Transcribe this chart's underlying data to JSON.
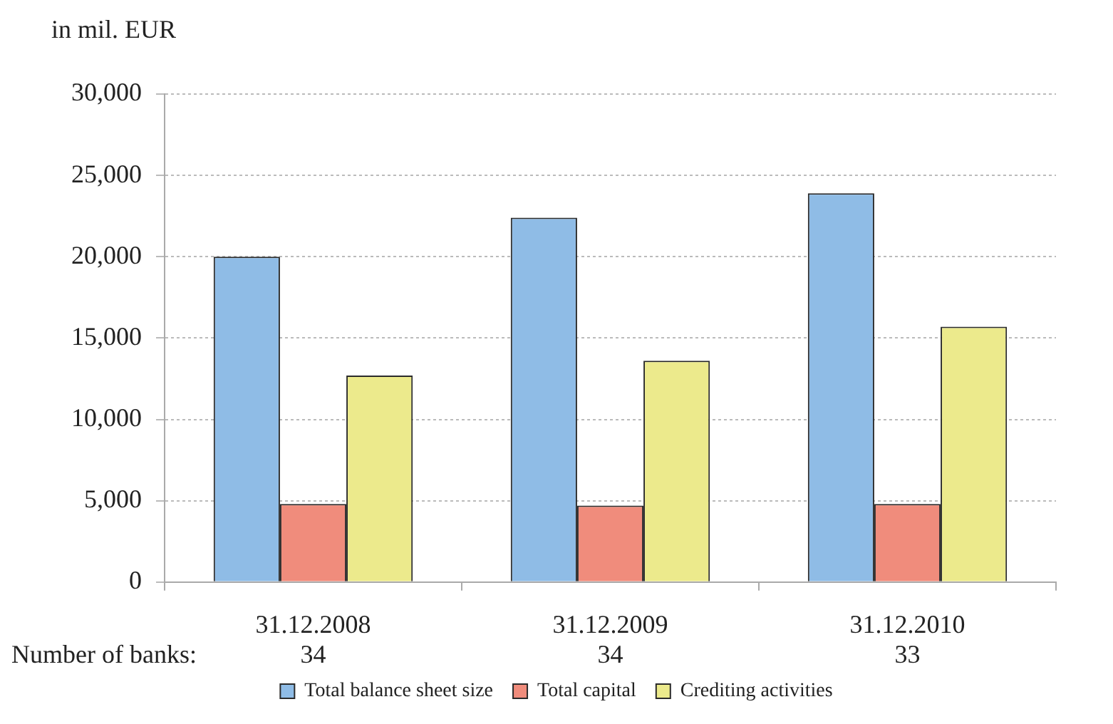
{
  "chart_data": {
    "type": "bar",
    "ylabel": "in mil. EUR",
    "categories": [
      "31.12.2008",
      "31.12.2009",
      "31.12.2010"
    ],
    "series": [
      {
        "name": "Total balance sheet size",
        "color": "#8fbce6",
        "values": [
          20000,
          22400,
          23900
        ]
      },
      {
        "name": "Total capital",
        "color": "#f08c7c",
        "values": [
          4800,
          4700,
          4800
        ]
      },
      {
        "name": "Crediting activities",
        "color": "#ecea8c",
        "values": [
          12700,
          13600,
          15700
        ]
      }
    ],
    "ylim": [
      0,
      30000
    ],
    "yticks": [
      0,
      {
        "value": 5000,
        "label": "5,000"
      },
      {
        "value": 10000,
        "label": "10,000"
      },
      {
        "value": 15000,
        "label": "15,000"
      },
      {
        "value": 20000,
        "label": "20,000"
      },
      {
        "value": 25000,
        "label": "25,000"
      },
      {
        "value": 30000,
        "label": "30,000"
      }
    ],
    "grid": "y",
    "legend": "bottom",
    "annotations": [
      "Number of banks:",
      "34",
      "34",
      "33"
    ]
  }
}
